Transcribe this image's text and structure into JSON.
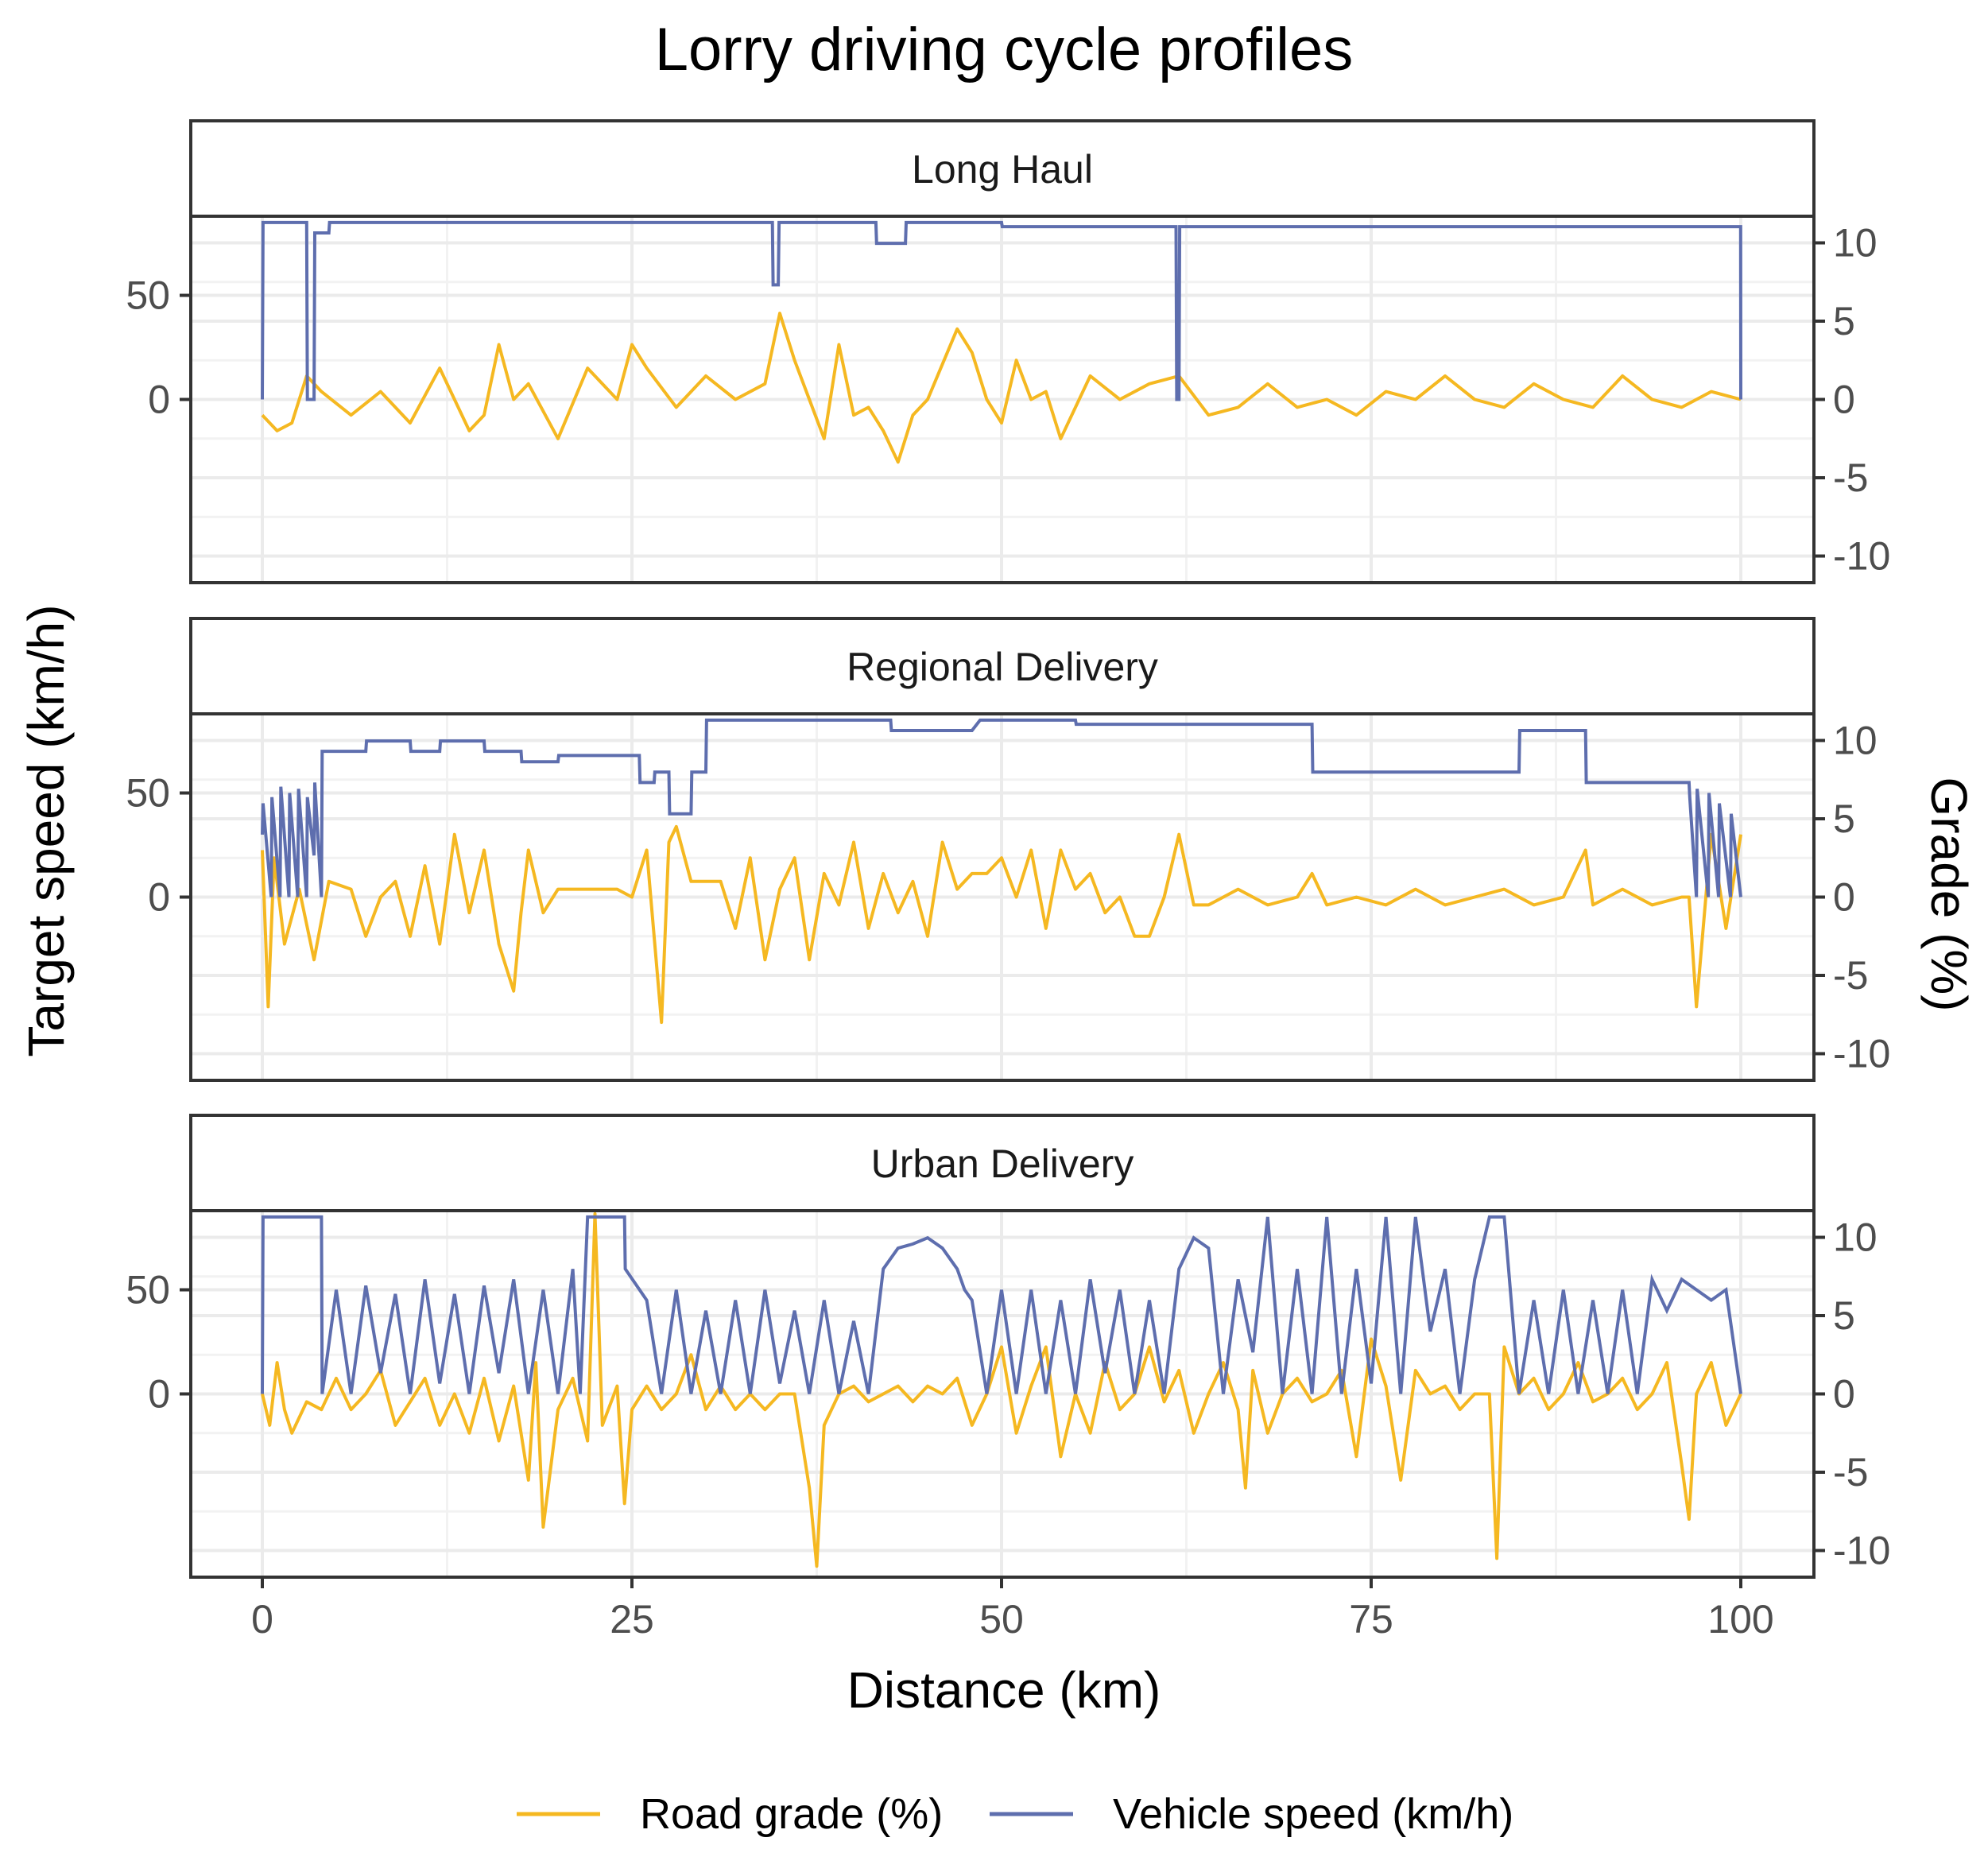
{
  "chart_data": {
    "type": "line",
    "title": "Lorry driving cycle profiles",
    "xlabel": "Distance (km)",
    "ylabel_left": "Target speed (km/h)",
    "ylabel_right": "Grade (%)",
    "xlim": [
      0,
      100
    ],
    "x_ticks": [
      0,
      25,
      50,
      75,
      100
    ],
    "y_left_ticks": [
      0,
      50
    ],
    "y_left_range": [
      -88,
      88
    ],
    "y_right_ticks": [
      -10,
      -5,
      0,
      5,
      10
    ],
    "y_right_range": [
      -11.7,
      11.7
    ],
    "legend_position": "bottom",
    "series_styles": [
      {
        "name": "Road grade (%)",
        "color": "#F5B821",
        "axis": "right"
      },
      {
        "name": "Vehicle speed (km/h)",
        "color": "#5E6EAE",
        "axis": "left"
      }
    ],
    "panels": [
      {
        "name": "Long Haul",
        "speed": {
          "x": [
            0,
            0.05,
            3.0,
            3.05,
            3.5,
            3.55,
            4.5,
            4.55,
            34.5,
            34.55,
            34.9,
            34.95,
            41.5,
            41.55,
            43.5,
            43.55,
            48.0,
            48.55,
            50.0,
            50.05,
            61.8,
            61.85,
            62.0,
            62.05,
            99.99,
            100
          ],
          "y": [
            0,
            85,
            85,
            0,
            0,
            80,
            80,
            85,
            85,
            55,
            55,
            85,
            85,
            75,
            75,
            85,
            85,
            85,
            85,
            83,
            83,
            0,
            0,
            83,
            83,
            0
          ]
        },
        "grade": {
          "x": [
            0,
            1,
            2,
            3,
            4,
            6,
            8,
            10,
            12,
            14,
            15,
            16,
            17,
            18,
            20,
            22,
            24,
            25,
            26,
            28,
            30,
            32,
            34,
            35,
            36,
            37,
            38,
            39,
            40,
            41,
            42,
            43,
            44,
            45,
            47,
            48,
            49,
            50,
            51,
            52,
            53,
            54,
            56,
            58,
            60,
            62,
            64,
            66,
            68,
            70,
            72,
            74,
            76,
            78,
            80,
            82,
            84,
            86,
            88,
            90,
            92,
            94,
            96,
            98,
            100
          ],
          "y": [
            -1,
            -2,
            -1.5,
            1.5,
            0.5,
            -1,
            0.5,
            -1.5,
            2,
            -2,
            -1,
            3.5,
            0,
            1,
            -2.5,
            2,
            0,
            3.5,
            2,
            -0.5,
            1.5,
            0,
            1,
            5.5,
            2.5,
            0,
            -2.5,
            3.5,
            -1,
            -0.5,
            -2,
            -4,
            -1,
            0,
            4.5,
            3,
            0,
            -1.5,
            2.5,
            0,
            0.5,
            -2.5,
            1.5,
            0,
            1,
            1.5,
            -1,
            -0.5,
            1,
            -0.5,
            0,
            -1,
            0.5,
            0,
            1.5,
            0,
            -0.5,
            1,
            0,
            -0.5,
            1.5,
            0,
            -0.5,
            0.5,
            0
          ]
        }
      },
      {
        "name": "Regional Delivery",
        "speed": {
          "x": [
            0,
            0.05,
            0.6,
            0.65,
            1.2,
            1.25,
            1.8,
            1.85,
            2.4,
            2.45,
            3.0,
            3.05,
            3.5,
            3.55,
            4.0,
            4.05,
            7.0,
            7.05,
            10.0,
            10.05,
            12.0,
            12.05,
            15.0,
            15.05,
            17.5,
            17.55,
            20.0,
            20.05,
            23.0,
            23.05,
            25.5,
            25.55,
            26.5,
            26.55,
            27.5,
            27.55,
            29.0,
            29.05,
            30.0,
            30.05,
            42.5,
            42.55,
            48.0,
            48.55,
            52.0,
            52.05,
            55.0,
            55.05,
            71.0,
            71.05,
            85.0,
            85.05,
            89.5,
            89.55,
            96.5,
            96.55,
            97.0,
            97.05,
            97.8,
            97.85,
            98.5,
            98.55,
            99.3,
            99.35,
            100
          ],
          "y": [
            30,
            45,
            0,
            48,
            0,
            53,
            0,
            50,
            0,
            52,
            0,
            48,
            20,
            55,
            0,
            70,
            70,
            75,
            75,
            70,
            70,
            75,
            75,
            70,
            70,
            65,
            65,
            68,
            68,
            68,
            68,
            55,
            55,
            60,
            60,
            40,
            40,
            60,
            60,
            85,
            85,
            80,
            80,
            85,
            85,
            85,
            85,
            83,
            83,
            60,
            60,
            80,
            80,
            55,
            55,
            48,
            0,
            52,
            0,
            50,
            0,
            45,
            0,
            40,
            0
          ]
        },
        "grade": {
          "x": [
            0,
            0.4,
            0.8,
            1.5,
            2.5,
            3.5,
            4.5,
            6,
            7,
            8,
            9,
            10,
            11,
            12,
            13,
            14,
            15,
            16,
            17,
            17.5,
            18,
            19,
            20,
            22,
            24,
            25,
            26,
            27,
            27.5,
            28,
            29,
            30,
            31,
            32,
            33,
            34,
            35,
            36,
            37,
            38,
            39,
            40,
            41,
            42,
            43,
            44,
            45,
            46,
            47,
            48,
            49,
            50,
            51,
            52,
            53,
            54,
            55,
            56,
            57,
            58,
            59,
            60,
            61,
            62,
            63,
            64,
            66,
            68,
            70,
            71,
            72,
            74,
            76,
            78,
            80,
            82,
            84,
            86,
            88,
            89.5,
            90,
            92,
            94,
            96,
            96.5,
            97,
            98,
            99,
            100
          ],
          "y": [
            3,
            -7,
            2.5,
            -3,
            0.5,
            -4,
            1,
            0.5,
            -2.5,
            0,
            1,
            -2.5,
            2,
            -3,
            4,
            -1,
            3,
            -3,
            -6,
            -1,
            3,
            -1,
            0.5,
            0.5,
            0.5,
            0,
            3,
            -8,
            3.5,
            4.5,
            1,
            1,
            1,
            -2,
            2.5,
            -4,
            0.5,
            2.5,
            -4,
            1.5,
            -0.5,
            3.5,
            -2,
            1.5,
            -1,
            1,
            -2.5,
            3.5,
            0.5,
            1.5,
            1.5,
            2.5,
            0,
            3,
            -2,
            3,
            0.5,
            1.5,
            -1,
            0,
            -2.5,
            -2.5,
            0,
            4,
            -0.5,
            -0.5,
            0.5,
            -0.5,
            0,
            1.5,
            -0.5,
            0,
            -0.5,
            0.5,
            -0.5,
            0,
            0.5,
            -0.5,
            0,
            3,
            -0.5,
            0.5,
            -0.5,
            0,
            0,
            -7,
            4,
            -2,
            4
          ]
        }
      },
      {
        "name": "Urban Delivery",
        "speed": {
          "x": [
            0,
            0.05,
            4.0,
            4.05,
            5,
            6,
            7,
            8,
            9,
            10,
            11,
            12,
            13,
            14,
            15,
            16,
            17,
            18,
            19,
            20,
            21,
            21.5,
            22.0,
            22.05,
            24.5,
            24.55,
            26,
            27,
            28,
            29,
            30,
            31,
            32,
            33,
            34,
            35,
            36,
            37,
            38,
            39,
            40,
            41,
            41.5,
            42,
            43,
            44,
            45,
            46,
            47,
            47.5,
            48,
            49,
            50,
            51,
            52,
            53,
            54,
            55,
            56,
            57,
            58,
            59,
            60,
            61,
            62,
            63,
            64,
            65,
            66,
            67,
            68,
            69,
            70,
            71,
            72,
            73,
            74,
            75,
            76,
            77,
            78,
            79,
            80,
            81,
            82,
            83,
            84,
            85,
            86,
            87,
            88,
            89,
            90,
            91,
            92,
            93,
            94,
            95,
            96,
            97,
            98,
            99,
            100
          ],
          "y": [
            0,
            85,
            85,
            0,
            50,
            0,
            52,
            10,
            48,
            0,
            55,
            5,
            48,
            0,
            52,
            10,
            55,
            0,
            50,
            0,
            60,
            0,
            85,
            85,
            85,
            60,
            45,
            0,
            50,
            0,
            40,
            0,
            45,
            0,
            50,
            5,
            40,
            0,
            45,
            0,
            35,
            0,
            30,
            60,
            70,
            72,
            75,
            70,
            60,
            50,
            45,
            0,
            50,
            0,
            50,
            0,
            45,
            0,
            55,
            10,
            50,
            0,
            45,
            0,
            60,
            75,
            70,
            0,
            55,
            20,
            85,
            0,
            60,
            0,
            85,
            0,
            60,
            5,
            85,
            0,
            85,
            30,
            60,
            0,
            55,
            85,
            85,
            0,
            45,
            0,
            50,
            0,
            45,
            0,
            50,
            0,
            55,
            40,
            55,
            50,
            45,
            50,
            0
          ]
        },
        "grade": {
          "x": [
            0,
            0.5,
            1,
            1.5,
            2,
            3,
            4,
            5,
            6,
            7,
            8,
            9,
            10,
            11,
            12,
            13,
            14,
            15,
            16,
            17,
            18,
            18.5,
            19,
            20,
            21,
            22,
            22.5,
            23,
            24,
            24.5,
            25,
            26,
            27,
            28,
            29,
            30,
            31,
            32,
            33,
            34,
            35,
            36,
            37,
            37.5,
            38,
            39,
            40,
            41,
            42,
            43,
            44,
            45,
            46,
            47,
            48,
            49,
            50,
            51,
            52,
            53,
            54,
            55,
            56,
            57,
            58,
            59,
            60,
            61,
            62,
            63,
            64,
            65,
            66,
            66.5,
            67,
            68,
            69,
            70,
            71,
            72,
            73,
            74,
            75,
            76,
            77,
            78,
            79,
            80,
            81,
            82,
            83,
            83.5,
            84,
            85,
            86,
            87,
            88,
            89,
            90,
            91,
            92,
            93,
            94,
            95,
            96,
            96.5,
            97,
            98,
            99,
            100
          ],
          "y": [
            0,
            -2,
            2,
            -1,
            -2.5,
            -0.5,
            -1,
            1,
            -1,
            0,
            1.5,
            -2,
            -0.5,
            1,
            -2,
            0,
            -2.5,
            1,
            -3,
            0.5,
            -5.5,
            2,
            -8.5,
            -1,
            1,
            -3,
            11.5,
            -2,
            0.5,
            -7,
            -1,
            0.5,
            -1,
            0,
            2.5,
            -1,
            0.5,
            -1,
            0,
            -1,
            0,
            0,
            -6,
            -11,
            -2,
            0,
            0.5,
            -0.5,
            0,
            0.5,
            -0.5,
            0.5,
            0,
            1,
            -2,
            0,
            3,
            -2.5,
            0.5,
            3,
            -4,
            0,
            -2.5,
            2,
            -1,
            0,
            3,
            -0.5,
            1.5,
            -2.5,
            0,
            2,
            -1,
            -6,
            1.5,
            -2.5,
            0,
            1,
            -0.5,
            0,
            1.5,
            -4,
            3.5,
            0.5,
            -5.5,
            1.5,
            0,
            0.5,
            -1,
            0,
            0,
            -10.5,
            3,
            0,
            1,
            -1,
            0,
            2,
            -0.5,
            0,
            1,
            -1,
            0,
            2,
            -4.5,
            -8,
            0,
            2,
            -2,
            0
          ]
        }
      }
    ]
  }
}
